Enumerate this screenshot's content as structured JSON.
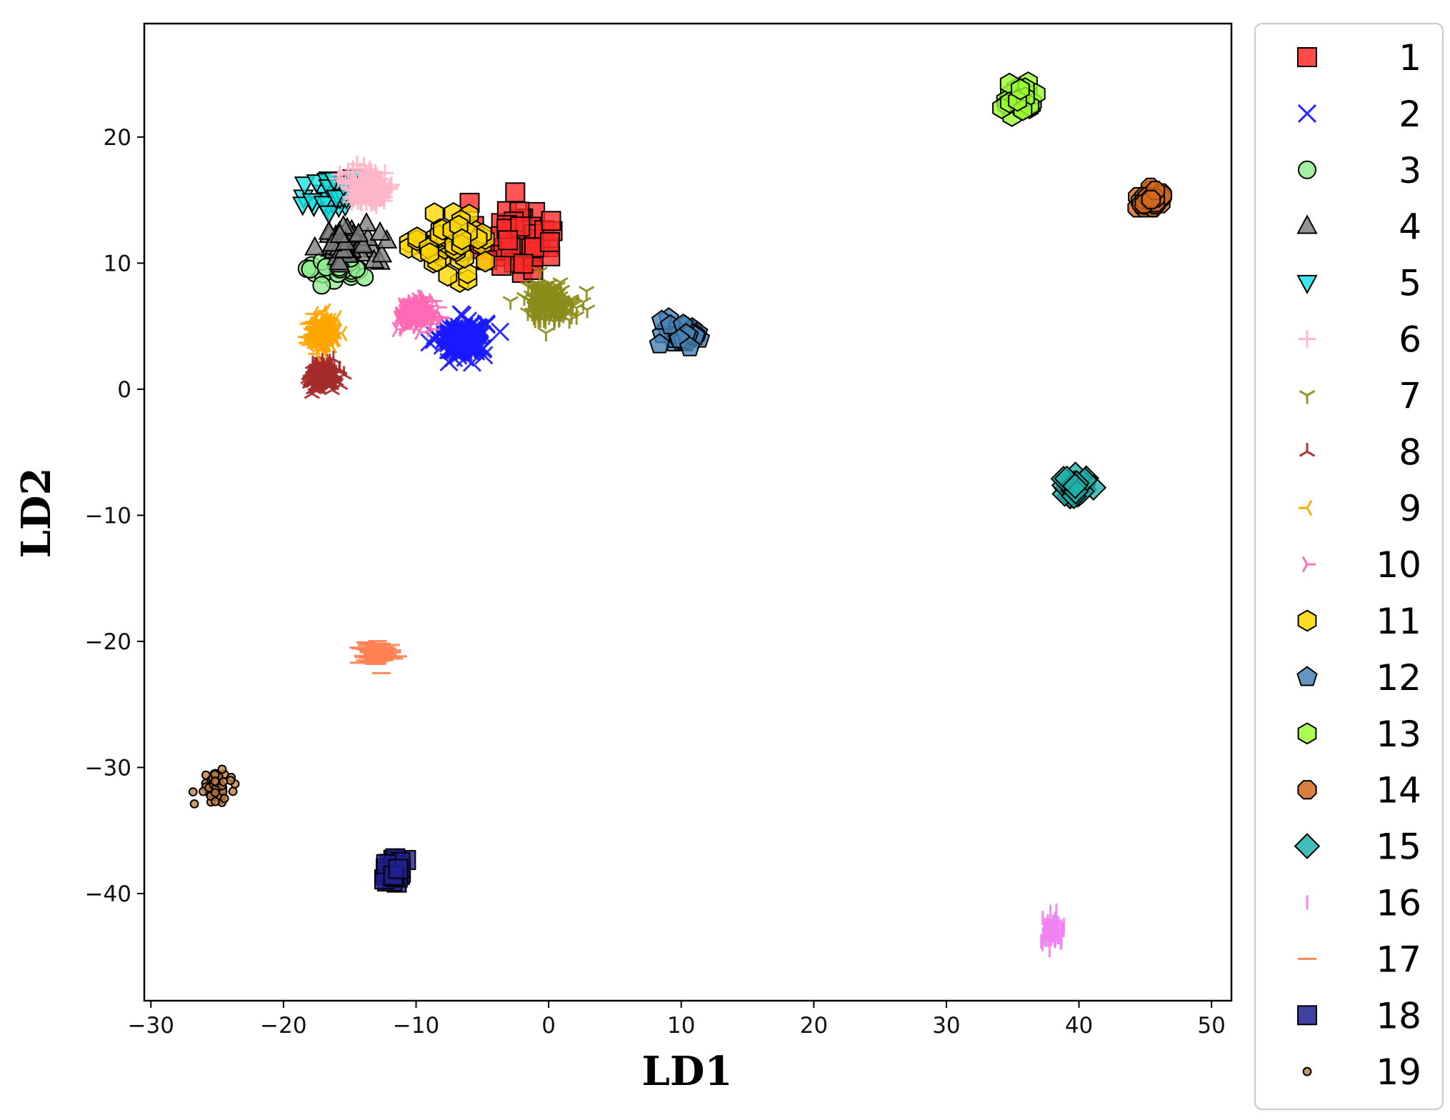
{
  "chart_data": {
    "type": "scatter",
    "xlabel": "LD1",
    "ylabel": "LD2",
    "xlim": [
      -30.5,
      51.5
    ],
    "ylim": [
      -48.5,
      29
    ],
    "xticks": [
      -30,
      -20,
      -10,
      0,
      10,
      20,
      30,
      40,
      50
    ],
    "yticks": [
      -40,
      -30,
      -20,
      -10,
      0,
      10,
      20
    ],
    "xtick_labels": [
      "−30",
      "−20",
      "−10",
      "0",
      "10",
      "20",
      "30",
      "40",
      "50"
    ],
    "ytick_labels": [
      "−40",
      "−30",
      "−20",
      "−10",
      "0",
      "10",
      "20"
    ],
    "grid": false,
    "legend_position": "right, outside plot",
    "series": [
      {
        "name": "1",
        "marker": "square",
        "color": "#ff2a2a",
        "edge": "#000000",
        "center": [
          -2.5,
          12.0
        ],
        "spread": [
          2.6,
          2.6
        ],
        "n": 60
      },
      {
        "name": "2",
        "marker": "x",
        "color": "#1a1aff",
        "edge": null,
        "center": [
          -6.5,
          4.0
        ],
        "spread": [
          1.6,
          1.3
        ],
        "n": 160
      },
      {
        "name": "3",
        "marker": "circle",
        "color": "#90ee90",
        "edge": "#000000",
        "center": [
          -15.5,
          9.5
        ],
        "spread": [
          2.0,
          1.0
        ],
        "n": 30
      },
      {
        "name": "4",
        "marker": "triangle",
        "color": "#808080",
        "edge": "#000000",
        "center": [
          -15.0,
          11.5
        ],
        "spread": [
          2.0,
          1.5
        ],
        "n": 45
      },
      {
        "name": "5",
        "marker": "tri_down",
        "color": "#19e3e6",
        "edge": "#000000",
        "center": [
          -16.0,
          15.5
        ],
        "spread": [
          1.8,
          1.8
        ],
        "n": 45
      },
      {
        "name": "6",
        "marker": "plus",
        "color": "#ffb6c8",
        "edge": null,
        "center": [
          -13.5,
          16.0
        ],
        "spread": [
          1.6,
          1.2
        ],
        "n": 160
      },
      {
        "name": "7",
        "marker": "y1",
        "color": "#8b8b1a",
        "edge": null,
        "center": [
          0.0,
          7.0
        ],
        "spread": [
          1.8,
          1.4
        ],
        "n": 140
      },
      {
        "name": "8",
        "marker": "y2",
        "color": "#a52a2a",
        "edge": null,
        "center": [
          -17.0,
          1.0
        ],
        "spread": [
          1.0,
          1.0
        ],
        "n": 150
      },
      {
        "name": "9",
        "marker": "y3",
        "color": "#ffa500",
        "edge": null,
        "center": [
          -17.0,
          4.5
        ],
        "spread": [
          1.0,
          1.1
        ],
        "n": 140
      },
      {
        "name": "10",
        "marker": "y4",
        "color": "#ff69b4",
        "edge": null,
        "center": [
          -10.0,
          6.0
        ],
        "spread": [
          1.2,
          1.0
        ],
        "n": 140
      },
      {
        "name": "11",
        "marker": "hexagon",
        "color": "#ffd700",
        "edge": "#000000",
        "center": [
          -7.5,
          11.5
        ],
        "spread": [
          2.5,
          2.0
        ],
        "n": 60
      },
      {
        "name": "12",
        "marker": "pentagon",
        "color": "#4682b4",
        "edge": "#000000",
        "center": [
          10.0,
          4.5
        ],
        "spread": [
          1.2,
          1.0
        ],
        "n": 35
      },
      {
        "name": "13",
        "marker": "hexagon",
        "color": "#9aff32",
        "edge": "#000000",
        "center": [
          35.5,
          23.0
        ],
        "spread": [
          1.2,
          1.0
        ],
        "n": 40
      },
      {
        "name": "14",
        "marker": "octagon",
        "color": "#d2691e",
        "edge": "#000000",
        "center": [
          45.5,
          15.0
        ],
        "spread": [
          1.0,
          0.7
        ],
        "n": 40
      },
      {
        "name": "15",
        "marker": "diamond",
        "color": "#20b2aa",
        "edge": "#000000",
        "center": [
          39.8,
          -7.8
        ],
        "spread": [
          0.9,
          0.8
        ],
        "n": 30
      },
      {
        "name": "16",
        "marker": "vline",
        "color": "#ee82ee",
        "edge": null,
        "center": [
          38.0,
          -43.0
        ],
        "spread": [
          0.8,
          0.9
        ],
        "n": 80
      },
      {
        "name": "17",
        "marker": "hline",
        "color": "#ff7f50",
        "edge": null,
        "center": [
          -13.0,
          -21.0
        ],
        "spread": [
          1.2,
          0.9
        ],
        "n": 80
      },
      {
        "name": "18",
        "marker": "square",
        "color": "#1f1f8f",
        "edge": "#000000",
        "center": [
          -11.5,
          -38.0
        ],
        "spread": [
          0.9,
          0.9
        ],
        "n": 30
      },
      {
        "name": "19",
        "marker": "point",
        "color": "#c08040",
        "edge": "#000000",
        "center": [
          -25.0,
          -31.5
        ],
        "spread": [
          0.8,
          0.9
        ],
        "n": 70
      }
    ]
  }
}
